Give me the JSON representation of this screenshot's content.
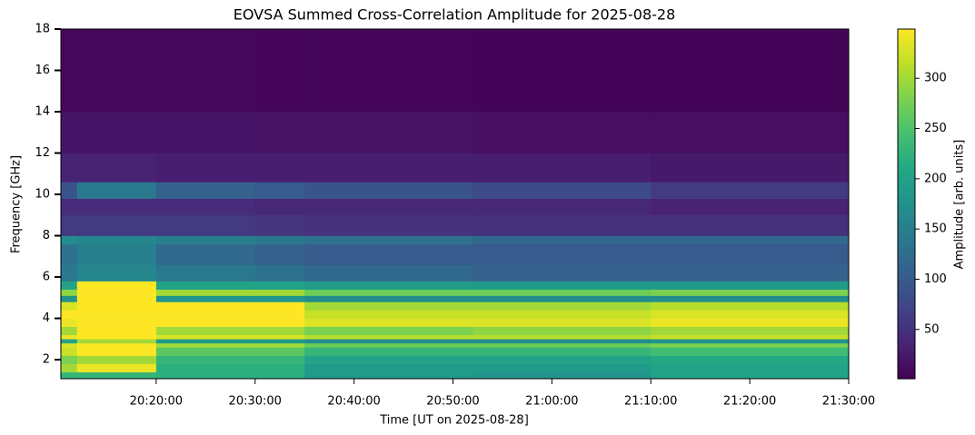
{
  "chart_data": {
    "type": "heatmap",
    "title": "EOVSA Summed Cross-Correlation Amplitude for 2025-08-28",
    "xlabel": "Time [UT on 2025-08-28]",
    "ylabel": "Frequency [GHz]",
    "colorbar_label": "Amplitude [arb. units]",
    "colormap": "viridis",
    "xlim": [
      "20:10:22",
      "21:30:00"
    ],
    "xticks": [
      "20:20:00",
      "20:30:00",
      "20:40:00",
      "20:50:00",
      "21:00:00",
      "21:10:00",
      "21:20:00",
      "21:30:00"
    ],
    "ylim": [
      1.08,
      18
    ],
    "yticks": [
      2,
      4,
      6,
      8,
      10,
      12,
      14,
      16,
      18
    ],
    "clim": [
      1,
      349
    ],
    "cticks": [
      50,
      100,
      150,
      200,
      250,
      300
    ],
    "x_edges": [
      "20:10:22",
      "20:12:00",
      "20:20:00",
      "20:30:00",
      "20:35:00",
      "20:52:00",
      "21:10:00",
      "21:30:00"
    ],
    "y_edges": [
      1.08,
      1.4,
      1.8,
      2.2,
      2.6,
      2.8,
      3.0,
      3.2,
      3.6,
      4.0,
      4.4,
      4.8,
      5.1,
      5.4,
      5.8,
      6.6,
      7.6,
      8.0,
      9.0,
      9.8,
      10.6,
      12,
      14,
      18
    ],
    "z": [
      [
        230,
        230,
        220,
        220,
        190,
        180,
        200
      ],
      [
        300,
        340,
        220,
        220,
        190,
        190,
        200
      ],
      [
        280,
        300,
        230,
        230,
        200,
        200,
        210
      ],
      [
        320,
        349,
        260,
        260,
        230,
        230,
        240
      ],
      [
        330,
        349,
        300,
        300,
        270,
        270,
        280
      ],
      [
        200,
        300,
        190,
        190,
        170,
        170,
        180
      ],
      [
        340,
        349,
        330,
        330,
        310,
        310,
        320
      ],
      [
        300,
        349,
        300,
        300,
        280,
        290,
        300
      ],
      [
        340,
        349,
        349,
        349,
        330,
        330,
        340
      ],
      [
        349,
        349,
        349,
        349,
        320,
        320,
        330
      ],
      [
        330,
        349,
        349,
        349,
        300,
        300,
        310
      ],
      [
        180,
        349,
        180,
        180,
        170,
        170,
        170
      ],
      [
        290,
        349,
        300,
        300,
        270,
        270,
        280
      ],
      [
        200,
        349,
        200,
        200,
        190,
        190,
        190
      ],
      [
        140,
        160,
        140,
        130,
        120,
        110,
        110
      ],
      [
        130,
        150,
        120,
        110,
        100,
        100,
        100
      ],
      [
        170,
        160,
        150,
        140,
        130,
        120,
        120
      ],
      [
        60,
        60,
        60,
        55,
        50,
        50,
        50
      ],
      [
        45,
        45,
        45,
        40,
        40,
        40,
        35
      ],
      [
        90,
        140,
        110,
        100,
        90,
        80,
        60
      ],
      [
        35,
        35,
        30,
        30,
        30,
        30,
        25
      ],
      [
        20,
        20,
        20,
        18,
        18,
        15,
        15
      ],
      [
        8,
        8,
        8,
        6,
        6,
        5,
        5
      ]
    ]
  }
}
